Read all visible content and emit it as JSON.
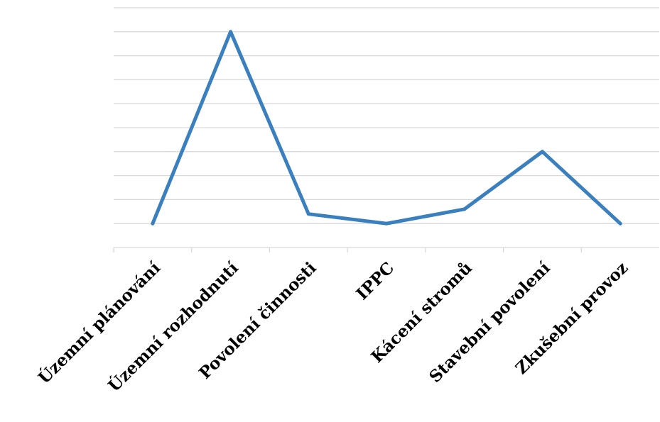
{
  "chart_data": {
    "type": "line",
    "categories": [
      "Územní plánování",
      "Územní rozhodnutí",
      "Povolení činnosti",
      "IPPC",
      "Kácení stromů",
      "Stavební povolení",
      "Zkušební provoz"
    ],
    "series": [
      {
        "values": [
          1,
          9,
          1.4,
          1,
          1.6,
          4,
          1
        ]
      }
    ],
    "ylim": [
      0,
      10
    ],
    "grid": true,
    "legend": "none",
    "colors": {
      "series": "#3a7fbe",
      "grid": "#d9d9d9",
      "text": "#000000"
    }
  }
}
